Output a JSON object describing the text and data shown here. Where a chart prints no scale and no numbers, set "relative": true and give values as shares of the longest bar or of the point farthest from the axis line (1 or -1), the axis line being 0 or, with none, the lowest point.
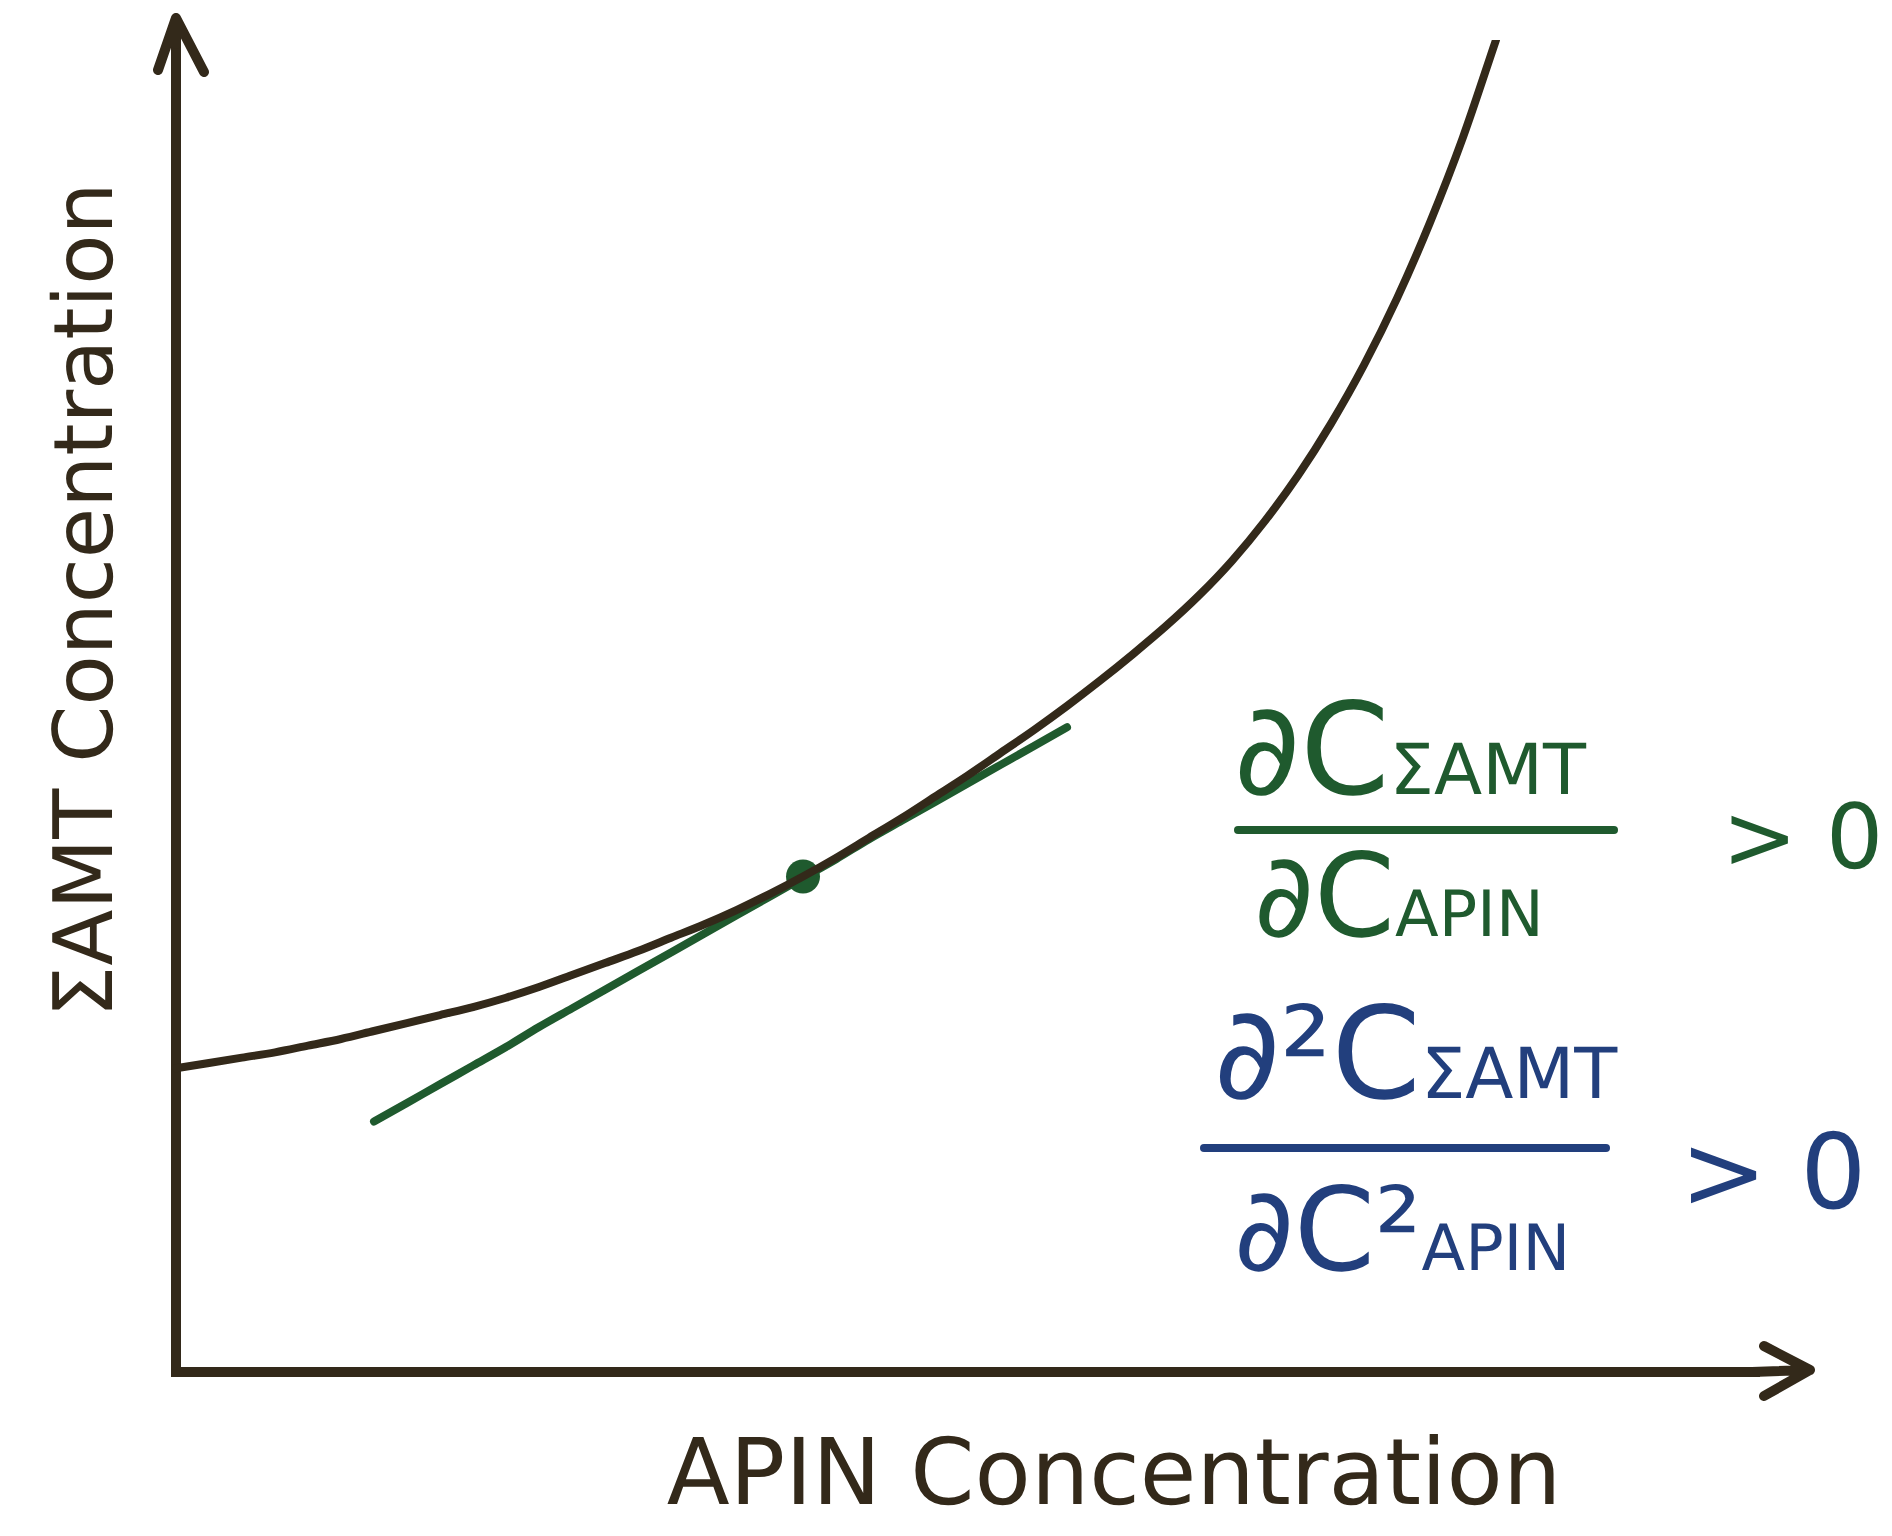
{
  "chart_data": {
    "type": "line",
    "xlabel": "APIN Concentration",
    "ylabel": "ΣAMT Concentration",
    "relative": true,
    "categories": [
      null,
      null,
      null,
      null,
      null,
      null,
      null,
      null,
      null,
      null,
      null,
      null,
      null,
      null,
      null,
      null,
      null,
      null,
      null,
      null,
      null,
      null,
      null,
      null,
      null,
      null,
      null,
      null,
      null,
      null,
      null,
      null,
      null,
      null,
      null,
      null,
      null,
      null,
      null,
      null,
      null
    ],
    "series": [
      {
        "color": "#33291a",
        "values": [
          0.228,
          0.232,
          0.236,
          0.24,
          0.245,
          0.25,
          0.256,
          0.262,
          0.268,
          0.274,
          0.281,
          0.289,
          0.298,
          0.307,
          0.316,
          0.326,
          0.336,
          0.347,
          0.359,
          0.372,
          0.386,
          0.401,
          0.416,
          0.432,
          0.448,
          0.465,
          0.482,
          0.5,
          0.519,
          0.539,
          0.56,
          0.583,
          0.609,
          0.639,
          0.673,
          0.712,
          0.756,
          0.806,
          0.863,
          0.927,
          1
        ]
      },
      {
        "color": "#1f5a2e",
        "values": [
          null,
          null,
          null,
          null,
          null,
          null,
          0.188,
          0.202,
          0.216,
          0.23,
          0.244,
          0.259,
          0.273,
          0.287,
          0.301,
          0.315,
          0.329,
          0.343,
          0.357,
          0.371,
          0.385,
          0.4,
          0.414,
          0.428,
          0.442,
          0.456,
          0.47,
          0.484,
          null,
          null,
          null,
          null,
          null,
          null,
          null,
          null,
          null,
          null,
          null,
          null,
          null
        ]
      },
      {
        "marker": "circle",
        "color": "#1f5a2e",
        "values": [
          null,
          null,
          null,
          null,
          null,
          null,
          null,
          null,
          null,
          null,
          null,
          null,
          null,
          null,
          null,
          null,
          null,
          null,
          null,
          0.372,
          null,
          null,
          null,
          null,
          null,
          null,
          null,
          null,
          null,
          null,
          null,
          null,
          null,
          null,
          null,
          null,
          null,
          null,
          null,
          null,
          null
        ]
      }
    ],
    "annotations": [
      "∂C$_{ΣAMT}$",
      "∂C$_{APIN}$",
      "> 0",
      "∂²C$_{ΣAMT}$",
      "∂C²$_{APIN}$",
      "> 0"
    ]
  }
}
